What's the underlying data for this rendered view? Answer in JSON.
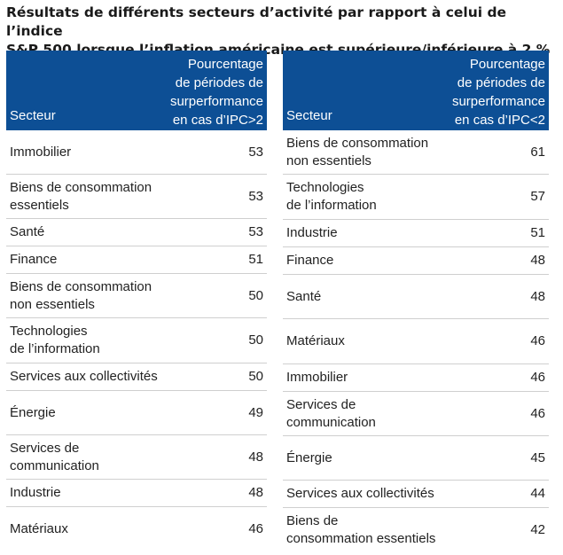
{
  "title": "Résultats de différents secteurs d’activité par rapport à celui de l’indice\nS&P 500 lorsque l’inflation américaine est supérieure/inférieure à 2 %",
  "left_table": {
    "header_sector": "Secteur",
    "header_pct": "Pourcentage\nde périodes de\nsurperformance\nen cas d’IPC>2",
    "rows": [
      {
        "sector": "Immobilier",
        "value": "53"
      },
      {
        "sector": "Biens de consommation\nessentiels",
        "value": "53"
      },
      {
        "sector": "Santé",
        "value": "53"
      },
      {
        "sector": "Finance",
        "value": "51"
      },
      {
        "sector": "Biens de consommation\nnon essentiels",
        "value": "50"
      },
      {
        "sector": "Technologies\nde l’information",
        "value": "50"
      },
      {
        "sector": "Services aux collectivités",
        "value": "50"
      },
      {
        "sector": "Énergie",
        "value": "49"
      },
      {
        "sector": "Services de\ncommunication",
        "value": "48"
      },
      {
        "sector": "Industrie",
        "value": "48"
      },
      {
        "sector": "Matériaux",
        "value": "46"
      }
    ]
  },
  "right_table": {
    "header_sector": "Secteur",
    "header_pct": "Pourcentage\nde périodes de\nsurperformance\nen cas d’IPC<2",
    "rows": [
      {
        "sector": "Biens de consommation\nnon essentiels",
        "value": "61"
      },
      {
        "sector": "Technologies\nde l’information",
        "value": "57"
      },
      {
        "sector": "Industrie",
        "value": "51"
      },
      {
        "sector": "Finance",
        "value": "48"
      },
      {
        "sector": "Santé",
        "value": "48"
      },
      {
        "sector": "Matériaux",
        "value": "46"
      },
      {
        "sector": "Immobilier",
        "value": "46"
      },
      {
        "sector": "Services de\ncommunication",
        "value": "46"
      },
      {
        "sector": "Énergie",
        "value": "45"
      },
      {
        "sector": "Services aux collectivités",
        "value": "44"
      },
      {
        "sector": "Biens de\nconsommation essentiels",
        "value": "42"
      }
    ]
  }
}
